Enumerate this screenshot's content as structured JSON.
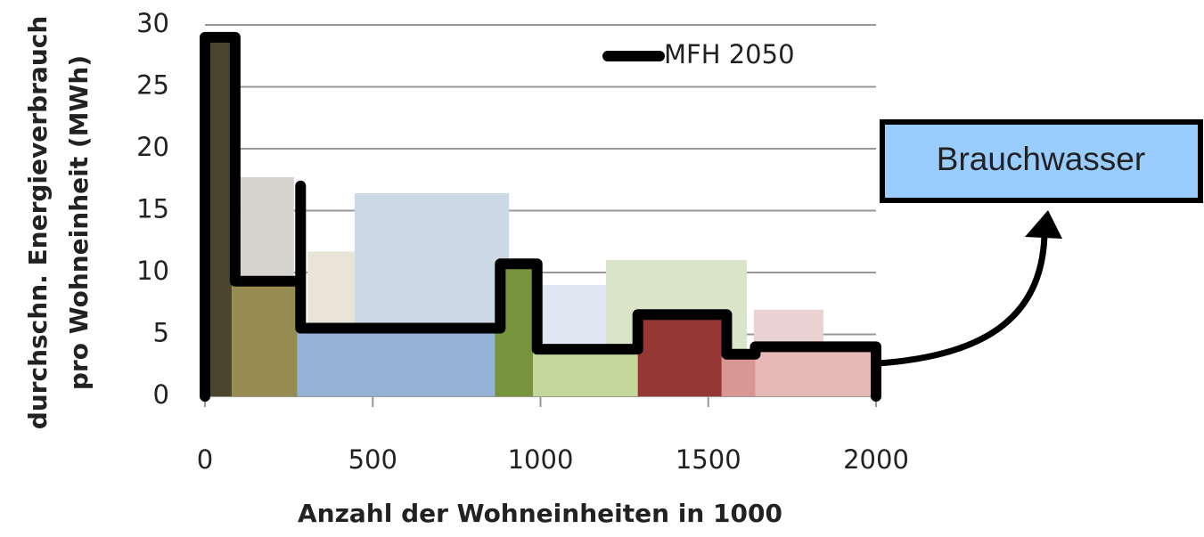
{
  "chart_data": {
    "type": "step",
    "xlabel": "Anzahl der Wohneinheiten in 1000",
    "ylabel": [
      "durchschn. Energieverbrauch",
      "pro Wohneinheit (MWh)"
    ],
    "xlim": [
      0,
      2000
    ],
    "xticks": [
      0,
      500,
      1000,
      1500,
      2000
    ],
    "ylim": [
      0,
      30
    ],
    "yticks": [
      0,
      5,
      10,
      15,
      20,
      25,
      30
    ],
    "grid": true,
    "background_bars": [
      {
        "left": 106,
        "right": 265,
        "value": 17.7,
        "color": "#d6d3cf"
      },
      {
        "left": 306,
        "right": 446,
        "value": 11.7,
        "color": "#e8e5d8"
      },
      {
        "left": 446,
        "right": 906,
        "value": 16.4,
        "color": "#ccd8e6"
      },
      {
        "left": 1004,
        "right": 1195,
        "value": 9,
        "color": "#e0e8f3"
      },
      {
        "left": 1195,
        "right": 1615,
        "value": 11,
        "color": "#d9e4c9"
      },
      {
        "left": 1636,
        "right": 1843,
        "value": 7,
        "color": "#ead2d2"
      }
    ],
    "bars": [
      {
        "left": 0,
        "right": 80,
        "value": 29,
        "color": "#4a452c"
      },
      {
        "left": 80,
        "right": 275,
        "value": 9,
        "color": "#968c52"
      },
      {
        "left": 275,
        "right": 864,
        "value": 5.5,
        "color": "#95b3d7"
      },
      {
        "left": 864,
        "right": 978,
        "value": 10.5,
        "color": "#77933c"
      },
      {
        "left": 978,
        "right": 1290,
        "value": 4,
        "color": "#c4d79b"
      },
      {
        "left": 1290,
        "right": 1540,
        "value": 6.5,
        "color": "#953735"
      },
      {
        "left": 1540,
        "right": 1640,
        "value": 3.5,
        "color": "#da9694"
      },
      {
        "left": 1640,
        "right": 2000,
        "value": 4,
        "color": "#e6b9b8"
      }
    ],
    "series": [
      {
        "name": "MFH 2050",
        "color": "#000000",
        "x": [
          0,
          0,
          90,
          90,
          285,
          285,
          285,
          880,
          880,
          990,
          990,
          1290,
          1290,
          1555,
          1555,
          1640,
          1640,
          2000,
          2000
        ],
        "values": [
          0,
          29,
          29,
          9.3,
          9.3,
          17,
          5.5,
          5.5,
          10.7,
          10.7,
          3.8,
          3.8,
          6.6,
          6.6,
          3.4,
          3.4,
          4,
          4,
          0
        ]
      }
    ],
    "legend": "upper right",
    "annotation": "Brauchwasser"
  }
}
